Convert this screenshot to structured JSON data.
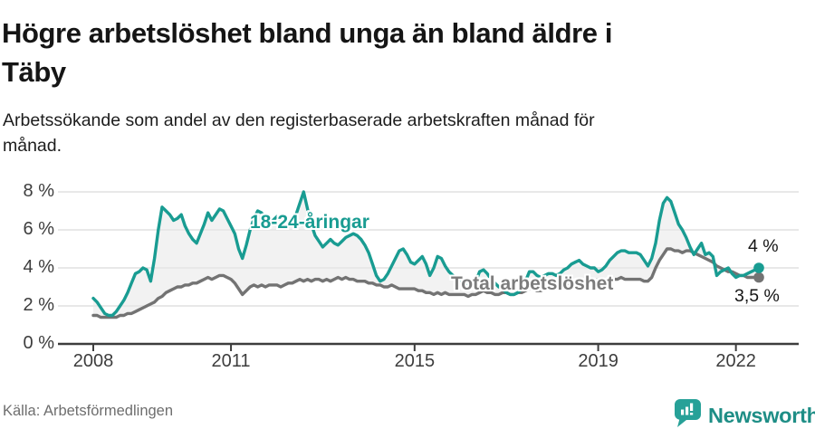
{
  "header": {
    "title_lines": [
      "Högre arbetslöshet bland unga än bland äldre i",
      "Täby"
    ],
    "subtitle_lines": [
      "Arbetssökande som andel av den registerbaserade arbetskraften månad för",
      "månad."
    ]
  },
  "footer": {
    "source": "Källa: Arbetsförmedlingen",
    "brand": "Newsworthy"
  },
  "colors": {
    "accent_teal": "#199c92",
    "line_gray": "#737373",
    "area_fill": "#e9e9e9",
    "gridline": "#d9d9d9",
    "axis": "#3d3d3d",
    "text_dark": "#151515",
    "brand_teal": "#1e8e86"
  },
  "chart_data": {
    "type": "line",
    "title": "Högre arbetslöshet bland unga än bland äldre i Täby",
    "subtitle": "Arbetssökande som andel av den registerbaserade arbetskraften månad för månad.",
    "x_start": "2008-01",
    "x_end": "2022-07",
    "x_frequency": "monthly",
    "x_tick_years": [
      2008,
      2011,
      2015,
      2019,
      2022
    ],
    "x_tick_labels": [
      "2008",
      "2011",
      "2015",
      "2019",
      "2022"
    ],
    "y_ticks": [
      0,
      2,
      4,
      6,
      8
    ],
    "y_tick_labels": [
      "0 %",
      "2 %",
      "4 %",
      "6 %",
      "8 %"
    ],
    "ylim": [
      0,
      8.6
    ],
    "grid": "horizontal",
    "legend_position": "inline-annotations",
    "area_between_series": true,
    "series": [
      {
        "name": "18-24-åringar",
        "color": "#199c92",
        "end_label": "4 %",
        "end_value": 4.0,
        "values": [
          2.4,
          2.2,
          1.9,
          1.6,
          1.5,
          1.5,
          1.7,
          2.0,
          2.3,
          2.7,
          3.2,
          3.7,
          3.8,
          4.0,
          3.9,
          3.3,
          4.5,
          6.0,
          7.2,
          7.0,
          6.8,
          6.5,
          6.6,
          6.8,
          6.2,
          5.8,
          5.5,
          5.3,
          5.8,
          6.3,
          6.9,
          6.5,
          6.8,
          7.1,
          7.0,
          6.6,
          6.2,
          5.8,
          5.0,
          4.5,
          5.2,
          6.0,
          6.6,
          7.0,
          6.9,
          6.5,
          6.3,
          6.5,
          6.7,
          6.5,
          6.3,
          6.2,
          6.4,
          6.8,
          7.4,
          8.0,
          7.1,
          6.3,
          5.7,
          5.4,
          5.1,
          5.3,
          5.5,
          5.3,
          5.2,
          5.4,
          5.6,
          5.7,
          5.8,
          5.7,
          5.5,
          5.2,
          4.8,
          4.2,
          3.6,
          3.3,
          3.4,
          3.7,
          4.1,
          4.5,
          4.9,
          5.0,
          4.7,
          4.3,
          4.2,
          4.4,
          4.6,
          4.2,
          3.6,
          4.0,
          4.6,
          4.5,
          4.1,
          3.8,
          3.6,
          3.5,
          3.3,
          3.2,
          3.1,
          3.0,
          3.3,
          3.8,
          3.9,
          3.7,
          3.4,
          3.2,
          3.0,
          2.9,
          2.7,
          2.6,
          2.6,
          2.7,
          2.9,
          3.3,
          3.8,
          3.8,
          3.6,
          3.5,
          3.6,
          3.7,
          3.7,
          3.6,
          3.7,
          3.9,
          4.0,
          4.2,
          4.3,
          4.4,
          4.2,
          4.1,
          4.0,
          4.0,
          3.8,
          3.9,
          4.1,
          4.4,
          4.6,
          4.8,
          4.9,
          4.9,
          4.8,
          4.8,
          4.8,
          4.7,
          4.4,
          4.1,
          4.5,
          5.3,
          6.5,
          7.4,
          7.7,
          7.5,
          6.9,
          6.3,
          6.0,
          5.6,
          5.1,
          4.7,
          5.0,
          5.3,
          4.7,
          4.8,
          4.6,
          3.6,
          3.8,
          3.9,
          4.0,
          3.7,
          3.5,
          3.6,
          3.6,
          3.7,
          3.8,
          3.9,
          4.0
        ]
      },
      {
        "name": "Total arbetslöshet",
        "color": "#737373",
        "end_label": "3,5 %",
        "end_value": 3.5,
        "values": [
          1.5,
          1.5,
          1.4,
          1.4,
          1.4,
          1.4,
          1.4,
          1.5,
          1.5,
          1.6,
          1.6,
          1.7,
          1.8,
          1.9,
          2.0,
          2.1,
          2.2,
          2.4,
          2.5,
          2.7,
          2.8,
          2.9,
          3.0,
          3.0,
          3.1,
          3.1,
          3.2,
          3.2,
          3.3,
          3.4,
          3.5,
          3.4,
          3.5,
          3.6,
          3.6,
          3.5,
          3.4,
          3.2,
          2.9,
          2.6,
          2.8,
          3.0,
          3.1,
          3.0,
          3.1,
          3.0,
          3.1,
          3.1,
          3.1,
          3.0,
          3.1,
          3.2,
          3.2,
          3.3,
          3.4,
          3.3,
          3.4,
          3.3,
          3.4,
          3.4,
          3.3,
          3.4,
          3.3,
          3.4,
          3.5,
          3.4,
          3.5,
          3.4,
          3.4,
          3.3,
          3.3,
          3.3,
          3.2,
          3.2,
          3.1,
          3.1,
          3.0,
          3.0,
          3.1,
          3.0,
          2.9,
          2.9,
          2.9,
          2.9,
          2.9,
          2.8,
          2.8,
          2.7,
          2.7,
          2.6,
          2.7,
          2.6,
          2.7,
          2.6,
          2.6,
          2.6,
          2.6,
          2.6,
          2.5,
          2.6,
          2.6,
          2.7,
          2.8,
          2.7,
          2.7,
          2.6,
          2.6,
          2.7,
          2.7,
          2.6,
          2.6,
          2.7,
          2.7,
          2.8,
          2.9,
          2.9,
          2.8,
          2.8,
          2.9,
          2.9,
          2.9,
          3.0,
          3.0,
          3.0,
          3.1,
          3.1,
          3.2,
          3.1,
          3.1,
          3.2,
          3.3,
          3.3,
          3.4,
          3.4,
          3.4,
          3.4,
          3.4,
          3.4,
          3.5,
          3.4,
          3.4,
          3.4,
          3.4,
          3.4,
          3.3,
          3.3,
          3.5,
          4.0,
          4.4,
          4.7,
          5.0,
          5.0,
          4.9,
          4.9,
          4.8,
          4.9,
          4.9,
          4.8,
          4.7,
          4.6,
          4.5,
          4.4,
          4.3,
          4.1,
          4.0,
          3.9,
          3.8,
          3.8,
          3.7,
          3.6,
          3.6,
          3.5,
          3.5,
          3.5,
          3.5
        ]
      }
    ]
  }
}
